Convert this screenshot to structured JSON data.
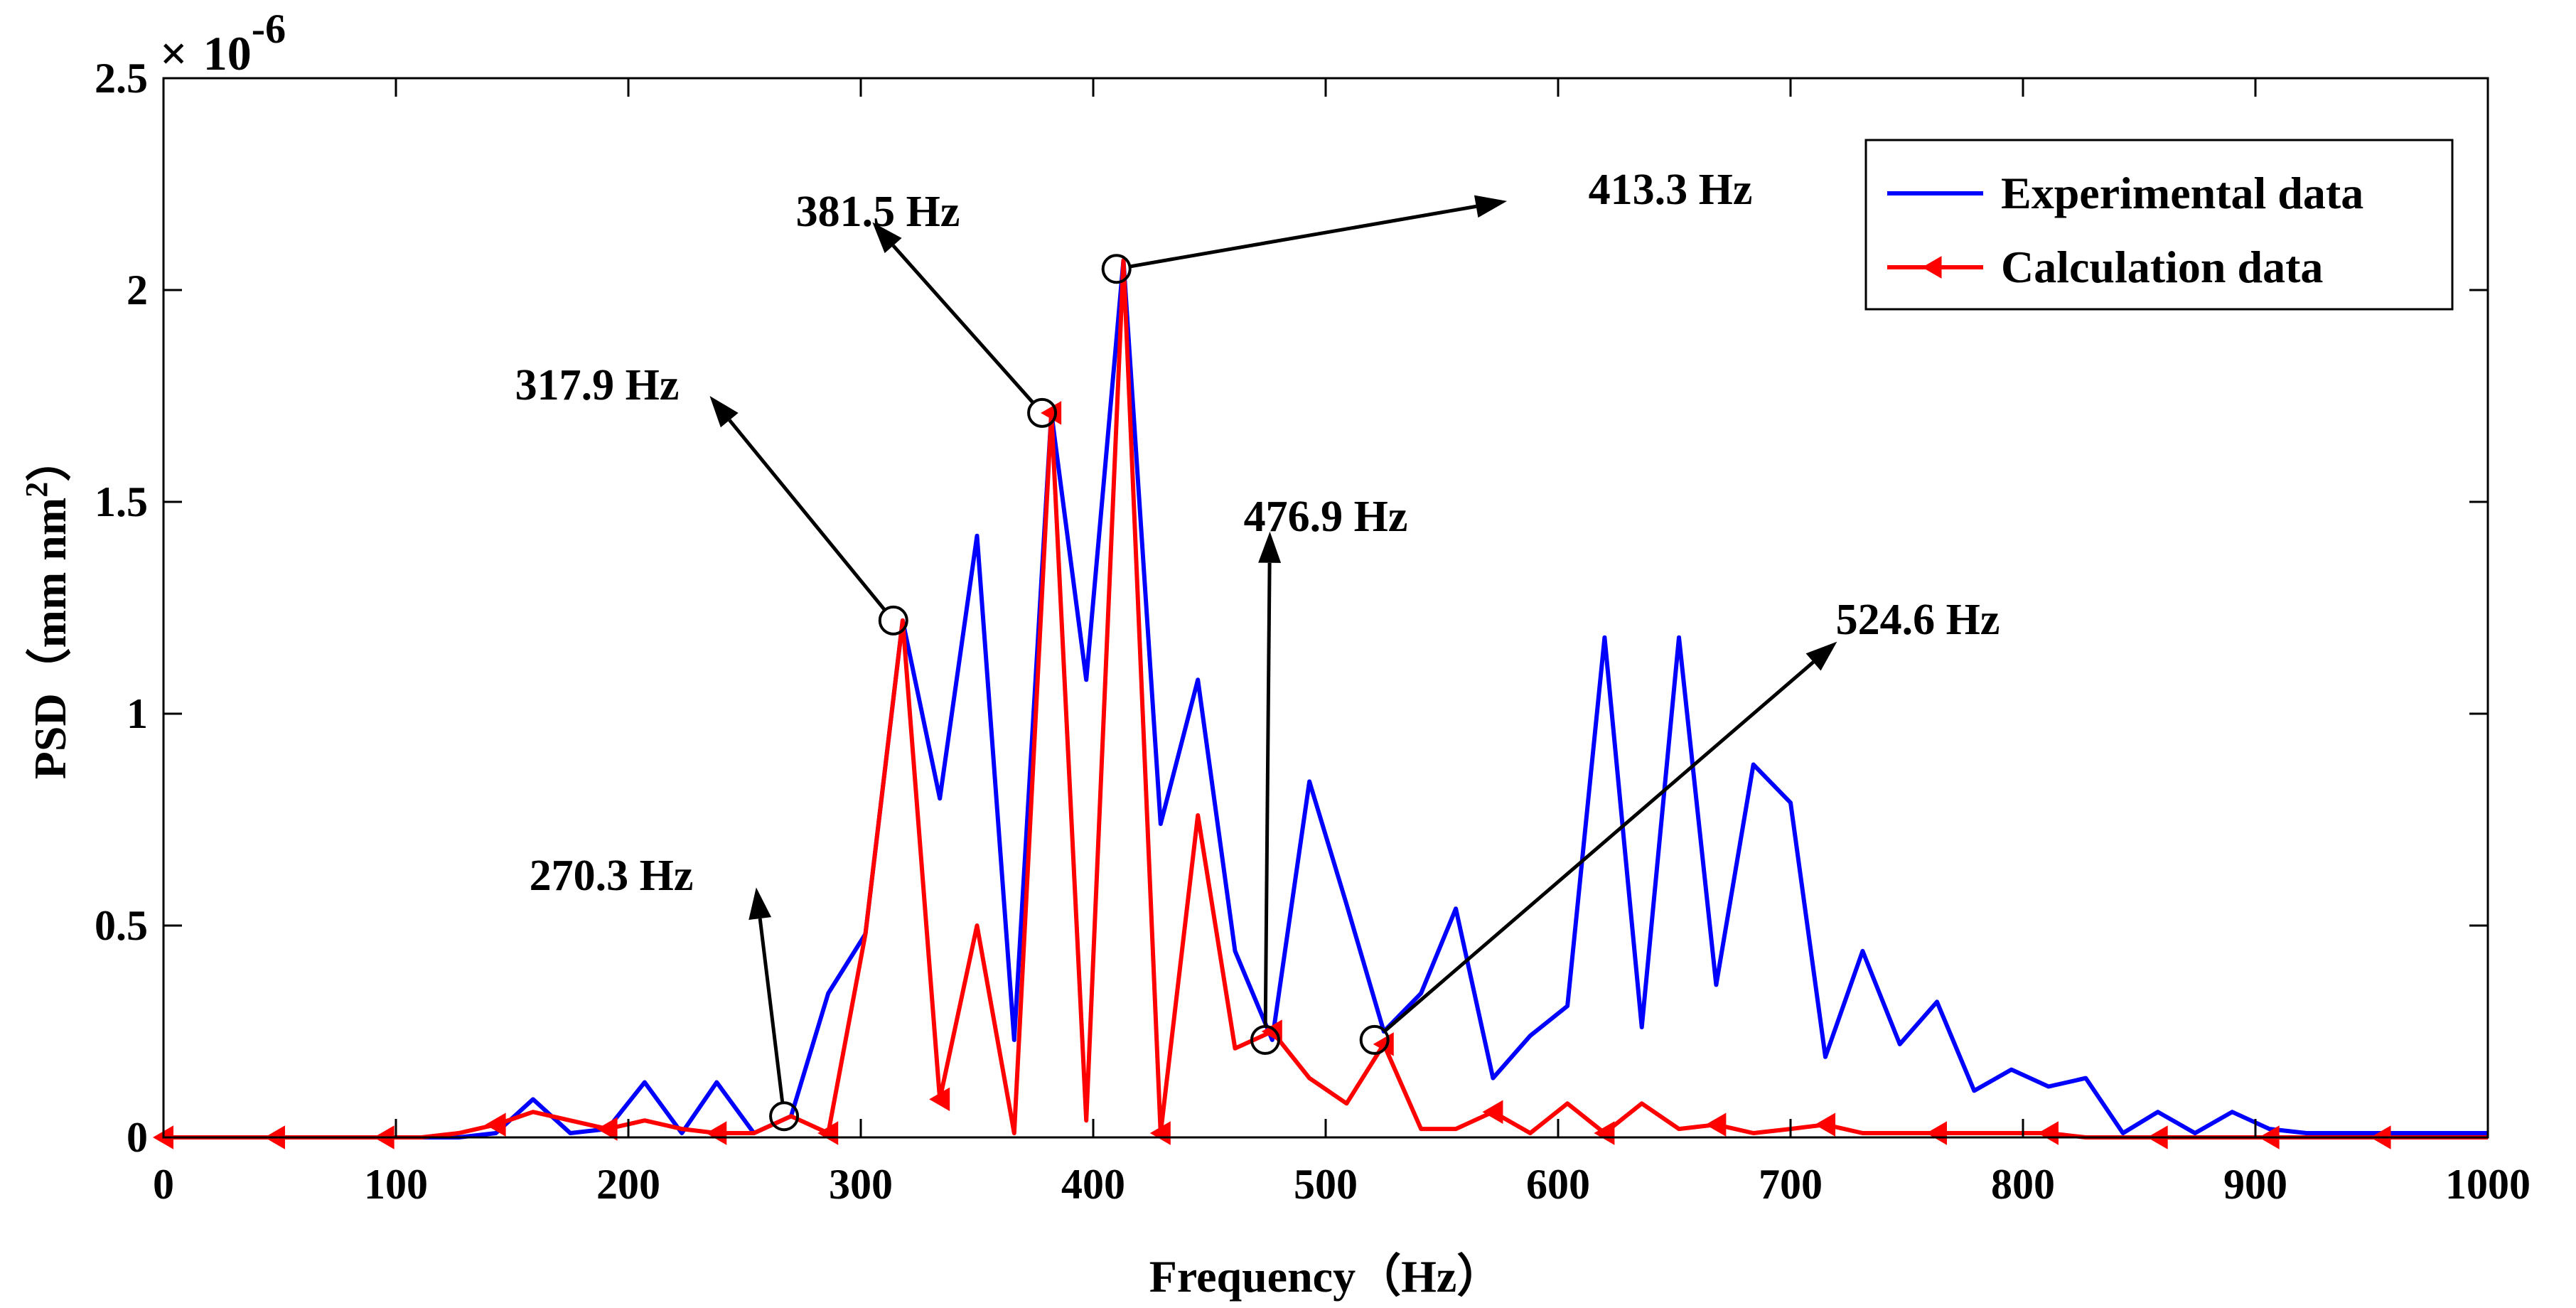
{
  "chart_data": {
    "type": "line",
    "title": "",
    "xlabel": "Frequency（Hz）",
    "ylabel": "PSD（mm nm",
    "ylabel_superscript": "2",
    "ylabel_close": "）",
    "y_multiplier_symbol": "×",
    "y_multiplier_base": "10",
    "y_multiplier_exponent": "-6",
    "xlim": [
      0,
      1000
    ],
    "ylim": [
      0,
      2.5
    ],
    "x_ticks": [
      0,
      100,
      200,
      300,
      400,
      500,
      600,
      700,
      800,
      900,
      1000
    ],
    "x_tick_labels": [
      "0",
      "100",
      "200",
      "300",
      "400",
      "500",
      "600",
      "700",
      "800",
      "900",
      "1000"
    ],
    "y_ticks": [
      0,
      0.5,
      1,
      1.5,
      2,
      2.5
    ],
    "y_tick_labels": [
      "0",
      "0.5",
      "1",
      "1.5",
      "2",
      "2.5"
    ],
    "grid": false,
    "legend_position": "top-right",
    "series": [
      {
        "name": "Experimental data",
        "color": "#0000ff",
        "marker": "none",
        "x": [
          0,
          16,
          32,
          48,
          64,
          80,
          95,
          111,
          127,
          143,
          159,
          175,
          191,
          207,
          223,
          238,
          254,
          270,
          286,
          302,
          318,
          334,
          350,
          366,
          382,
          397,
          413,
          429,
          445,
          461,
          477,
          493,
          509,
          525,
          541,
          556,
          572,
          588,
          604,
          620,
          636,
          652,
          668,
          684,
          700,
          715,
          731,
          747,
          763,
          779,
          795,
          811,
          827,
          843,
          858,
          874,
          890,
          906,
          922,
          938,
          954,
          970,
          1000
        ],
        "values": [
          0,
          0,
          0,
          0,
          0,
          0,
          0,
          0,
          0,
          0.01,
          0.09,
          0.01,
          0.02,
          0.13,
          0.01,
          0.13,
          0.01,
          0.05,
          0.34,
          0.48,
          1.22,
          0.8,
          1.42,
          0.23,
          1.71,
          1.08,
          2.07,
          0.74,
          1.08,
          0.44,
          0.23,
          0.84,
          0.55,
          0.25,
          0.34,
          0.54,
          0.14,
          0.24,
          0.31,
          1.18,
          0.26,
          1.18,
          0.36,
          0.88,
          0.79,
          0.19,
          0.44,
          0.22,
          0.32,
          0.11,
          0.16,
          0.12,
          0.14,
          0.01,
          0.06,
          0.01,
          0.06,
          0.02,
          0.01,
          0.01,
          0.01,
          0.01,
          0.01
        ]
      },
      {
        "name": "Calculation data",
        "color": "#ff0000",
        "marker": "left-triangle",
        "x": [
          0,
          16,
          32,
          48,
          64,
          80,
          95,
          111,
          127,
          143,
          159,
          175,
          191,
          207,
          223,
          238,
          254,
          270,
          286,
          302,
          318,
          334,
          350,
          366,
          382,
          397,
          413,
          429,
          445,
          461,
          477,
          493,
          509,
          525,
          541,
          556,
          572,
          588,
          604,
          620,
          636,
          652,
          668,
          684,
          700,
          715,
          731,
          747,
          763,
          779,
          795,
          811,
          827,
          843,
          858,
          874,
          890,
          906,
          922,
          938,
          954,
          970,
          1000
        ],
        "values": [
          0,
          0,
          0,
          0,
          0,
          0,
          0,
          0,
          0.01,
          0.03,
          0.06,
          0.04,
          0.02,
          0.04,
          0.02,
          0.01,
          0.01,
          0.05,
          0.01,
          0.48,
          1.22,
          0.09,
          0.5,
          0.01,
          1.71,
          0.04,
          2.07,
          0.01,
          0.76,
          0.21,
          0.25,
          0.14,
          0.08,
          0.22,
          0.02,
          0.02,
          0.06,
          0.01,
          0.08,
          0.01,
          0.08,
          0.02,
          0.03,
          0.01,
          0.02,
          0.03,
          0.01,
          0.01,
          0.01,
          0.01,
          0.01,
          0.01,
          0,
          0,
          0,
          0,
          0,
          0,
          0,
          0,
          0,
          0,
          0
        ]
      }
    ],
    "annotations": [
      {
        "label": "270.3 Hz",
        "point_x": 267,
        "point_y": 0.05,
        "text_x": 255,
        "text_y": 0.59
      },
      {
        "label": "317.9 Hz",
        "point_x": 314,
        "point_y": 1.22,
        "text_x": 235,
        "text_y": 1.75
      },
      {
        "label": "381.5 Hz",
        "point_x": 378,
        "point_y": 1.71,
        "text_x": 305,
        "text_y": 2.16
      },
      {
        "label": "413.3 Hz",
        "point_x": 410,
        "point_y": 2.05,
        "text_x": 578,
        "text_y": 2.21
      },
      {
        "label": "476.9 Hz",
        "point_x": 474,
        "point_y": 0.23,
        "text_x": 476,
        "text_y": 1.43
      },
      {
        "label": "524.6 Hz",
        "point_x": 521,
        "point_y": 0.23,
        "text_x": 720,
        "text_y": 1.17
      }
    ]
  }
}
